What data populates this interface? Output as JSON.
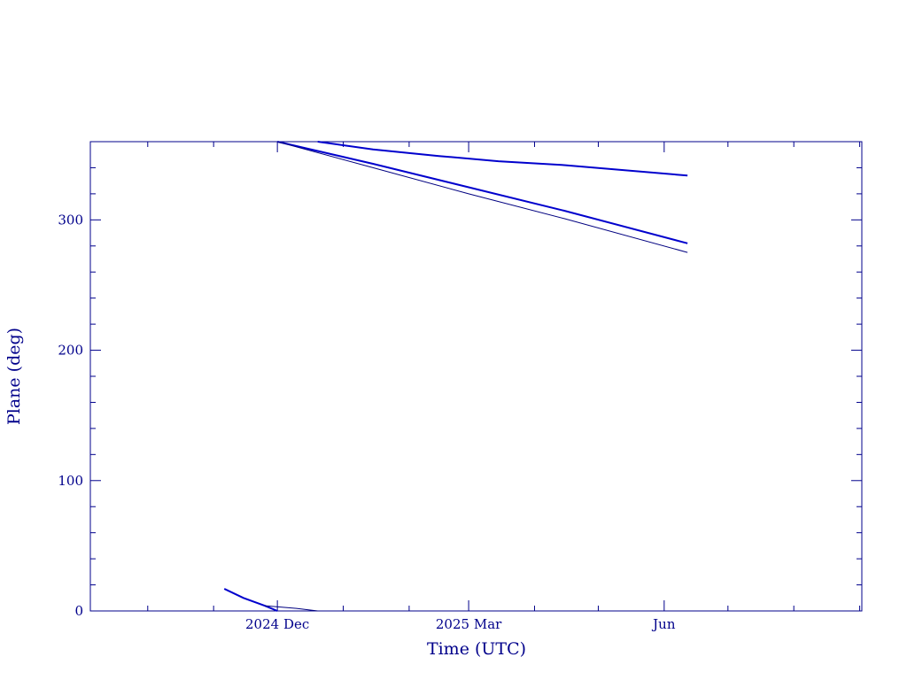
{
  "chart_data": {
    "type": "line",
    "title": "",
    "xlabel": "Time (UTC)",
    "ylabel": "Plane (deg)",
    "xlim": [
      "2024-09-04",
      "2025-09-02"
    ],
    "ylim": [
      0,
      360
    ],
    "grid": false,
    "x_ticks": [
      {
        "date": "2024-12-01",
        "label": "2024 Dec"
      },
      {
        "date": "2025-03-01",
        "label": "2025 Mar"
      },
      {
        "date": "2025-06-01",
        "label": "Jun"
      }
    ],
    "y_ticks": [
      0,
      100,
      200,
      300
    ],
    "colors": {
      "axes": "#00008b",
      "line_blue": "#0000cd",
      "line_dark": "#000080"
    },
    "series": [
      {
        "style": "thick-blue",
        "x": [
          "2024-11-06",
          "2024-11-15",
          "2024-11-25",
          "2024-12-01"
        ],
        "y": [
          17,
          10,
          4,
          0
        ]
      },
      {
        "style": "thick-blue",
        "x": [
          "2024-12-01",
          "2025-01-15",
          "2025-03-01",
          "2025-04-15",
          "2025-06-12"
        ],
        "y": [
          360,
          343,
          325,
          307,
          282
        ]
      },
      {
        "style": "thin-dark",
        "x": [
          "2024-11-25",
          "2024-12-10",
          "2024-12-20"
        ],
        "y": [
          4,
          2,
          0
        ]
      },
      {
        "style": "thin-dark",
        "x": [
          "2024-12-01",
          "2025-01-15",
          "2025-03-01",
          "2025-04-15",
          "2025-06-12"
        ],
        "y": [
          360,
          340,
          320,
          301,
          275
        ]
      },
      {
        "style": "thick-blue",
        "x": [
          "2024-12-20",
          "2025-01-15",
          "2025-02-15",
          "2025-03-15",
          "2025-04-15",
          "2025-06-12"
        ],
        "y": [
          360,
          354,
          349,
          345,
          342,
          334
        ]
      }
    ]
  }
}
